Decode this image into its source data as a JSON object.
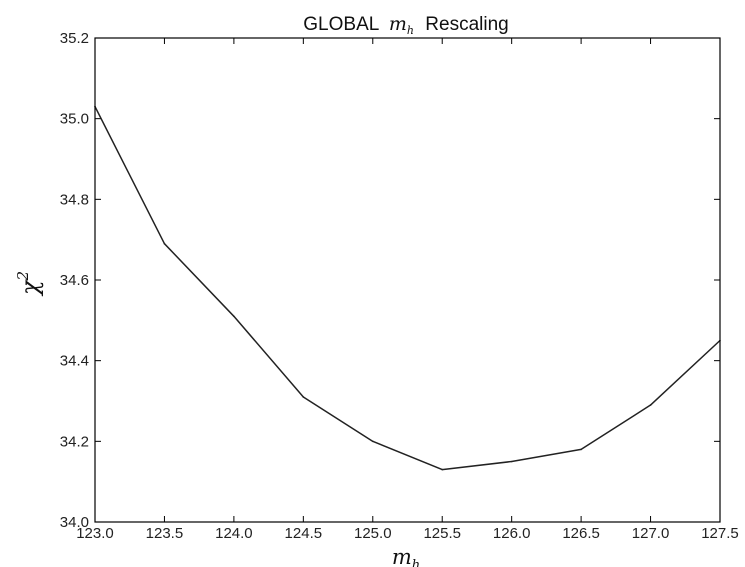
{
  "chart_data": {
    "type": "line",
    "title_prefix": "GLOBAL",
    "title_math_base": "m",
    "title_math_sub": "h",
    "title_suffix": "Rescaling",
    "xlabel_base": "m",
    "xlabel_sub": "h",
    "ylabel_base": "χ",
    "ylabel_sup": "2",
    "xlim": [
      123.0,
      127.5
    ],
    "ylim": [
      34.0,
      35.2
    ],
    "xticks": [
      123.0,
      123.5,
      124.0,
      124.5,
      125.0,
      125.5,
      126.0,
      126.5,
      127.0,
      127.5
    ],
    "xtick_labels": [
      "123.0",
      "123.5",
      "124.0",
      "124.5",
      "125.0",
      "125.5",
      "126.0",
      "126.5",
      "127.0",
      "127.5"
    ],
    "yticks": [
      34.0,
      34.2,
      34.4,
      34.6,
      34.8,
      35.0,
      35.2
    ],
    "ytick_labels": [
      "34.0",
      "34.2",
      "34.4",
      "34.6",
      "34.8",
      "35.0",
      "35.2"
    ],
    "grid": false,
    "series": [
      {
        "color": "#222222",
        "x": [
          123.0,
          123.5,
          124.0,
          124.5,
          125.0,
          125.5,
          126.0,
          126.5,
          127.0,
          127.5
        ],
        "y": [
          35.03,
          34.69,
          34.51,
          34.31,
          34.2,
          34.13,
          34.15,
          34.18,
          34.29,
          34.45
        ]
      }
    ]
  }
}
